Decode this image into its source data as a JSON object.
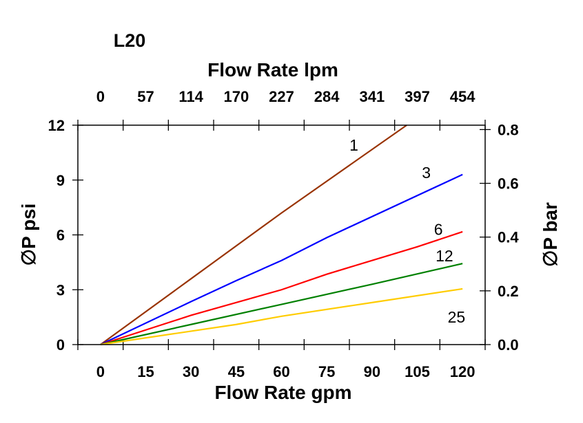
{
  "chart_data": {
    "type": "line",
    "title": "L20",
    "xlabel": "Flow Rate gpm",
    "x2label": "Flow Rate lpm",
    "ylabel": "∅P psi",
    "y2label": "∅P bar",
    "xlim": [
      -7.5,
      127.5
    ],
    "ylim": [
      0,
      12
    ],
    "x_ticks": [
      0,
      15,
      30,
      45,
      60,
      75,
      90,
      105,
      120
    ],
    "x2_tick_labels": [
      "0",
      "57",
      "114",
      "170",
      "227",
      "284",
      "341",
      "397",
      "454"
    ],
    "y_ticks": [
      0,
      3,
      6,
      9,
      12
    ],
    "y2_ticks": [
      "0.0",
      "0.2",
      "0.4",
      "0.6",
      "0.8"
    ],
    "grid": false,
    "legend": "none",
    "series": [
      {
        "name": "1",
        "color": "#993300",
        "points": [
          [
            0,
            0
          ],
          [
            30,
            3.6
          ],
          [
            60,
            7.2
          ],
          [
            101.5,
            12
          ]
        ]
      },
      {
        "name": "3",
        "color": "#0000ff",
        "points": [
          [
            0,
            0
          ],
          [
            30,
            2.35
          ],
          [
            45,
            3.5
          ],
          [
            60,
            4.6
          ],
          [
            75,
            5.85
          ],
          [
            120,
            9.3
          ]
        ]
      },
      {
        "name": "6",
        "color": "#ff0000",
        "points": [
          [
            0,
            0
          ],
          [
            30,
            1.6
          ],
          [
            60,
            3.0
          ],
          [
            75,
            3.85
          ],
          [
            105,
            5.35
          ],
          [
            120,
            6.17
          ]
        ]
      },
      {
        "name": "12",
        "color": "#008000",
        "points": [
          [
            0,
            0
          ],
          [
            30,
            1.1
          ],
          [
            60,
            2.2
          ],
          [
            90,
            3.3
          ],
          [
            120,
            4.43
          ]
        ]
      },
      {
        "name": "25",
        "color": "#ffcc00",
        "points": [
          [
            0,
            0
          ],
          [
            45,
            1.1
          ],
          [
            60,
            1.55
          ],
          [
            90,
            2.3
          ],
          [
            120,
            3.05
          ]
        ]
      }
    ]
  }
}
